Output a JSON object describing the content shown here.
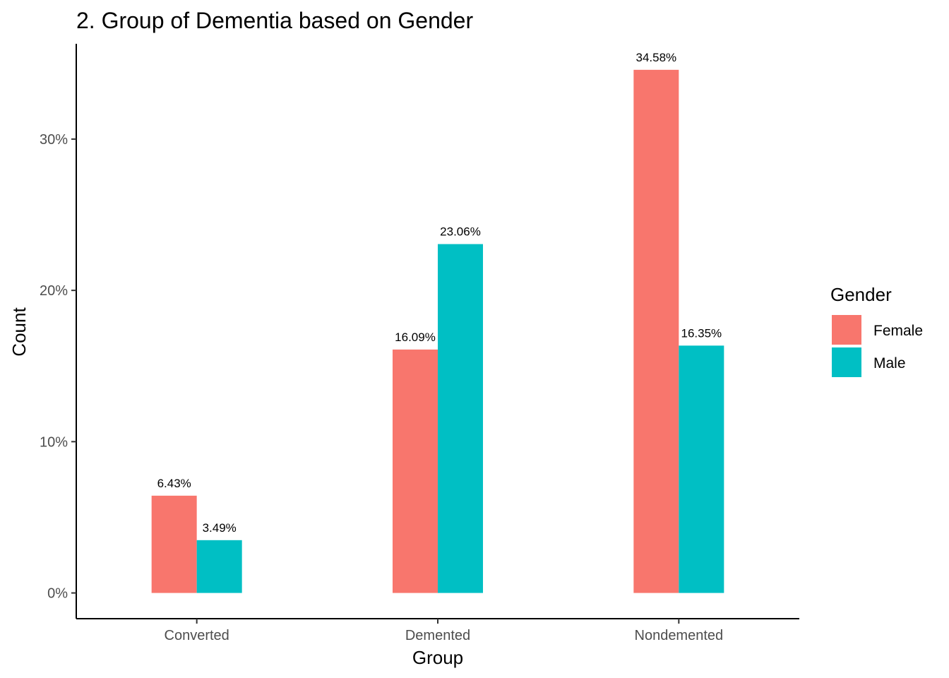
{
  "chart_data": {
    "type": "bar",
    "title": "2. Group of Dementia based on Gender",
    "xlabel": "Group",
    "ylabel": "Count",
    "categories": [
      "Converted",
      "Demented",
      "Nondemented"
    ],
    "series": [
      {
        "name": "Female",
        "color": "#F8766D",
        "values": [
          6.43,
          16.09,
          34.58
        ],
        "labels": [
          "6.43%",
          "16.09%",
          "34.58%"
        ]
      },
      {
        "name": "Male",
        "color": "#00BFC4",
        "values": [
          3.49,
          23.06,
          16.35
        ],
        "labels": [
          "3.49%",
          "23.06%",
          "16.35%"
        ]
      }
    ],
    "yticks": [
      0,
      10,
      20,
      30
    ],
    "ytick_labels": [
      "0%",
      "10%",
      "20%",
      "30%"
    ],
    "ylim": [
      -1.7,
      36.3
    ],
    "grid": false,
    "legend": {
      "title": "Gender",
      "position": "right"
    }
  }
}
